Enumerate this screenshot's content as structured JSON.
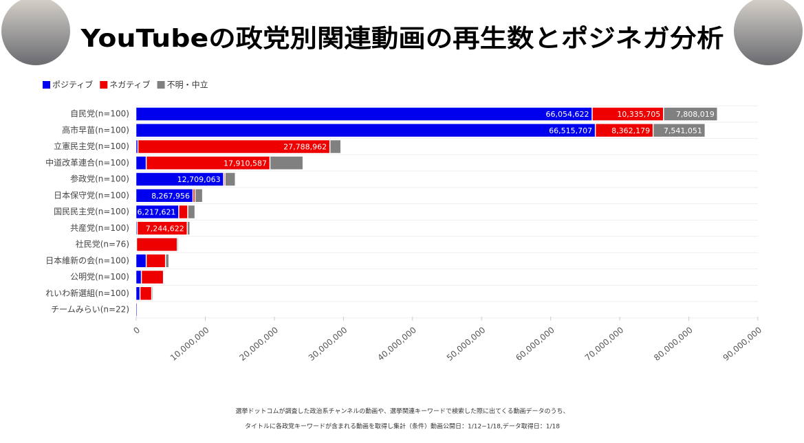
{
  "chart_data": {
    "type": "stacked-bar-horizontal",
    "title": "YouTubeの政党別関連動画の再生数とポジネガ分析",
    "categories": [
      "自民党(n=100)",
      "高市早苗(n=100)",
      "立憲民主党(n=100)",
      "中道改革連合(n=100)",
      "参政党(n=100)",
      "日本保守党(n=100)",
      "国民民主党(n=100)",
      "共産党(n=100)",
      "社民党(n=76)",
      "日本維新の会(n=100)",
      "公明党(n=100)",
      "れいわ新選組(n=100)",
      "チームみらい(n=22)"
    ],
    "series": [
      {
        "name": "ポジティブ",
        "color": "#0000ee",
        "values": [
          66054622,
          66515707,
          300000,
          1500000,
          12709063,
          8267956,
          6217621,
          200000,
          100000,
          1500000,
          800000,
          600000,
          200000
        ],
        "value_labels": [
          "66,054,622",
          "66,515,707",
          null,
          null,
          "12,709,063",
          "8,267,956",
          "6,217,621",
          null,
          null,
          null,
          null,
          null,
          null
        ]
      },
      {
        "name": "ネガティブ",
        "color": "#ee0000",
        "values": [
          10335705,
          8362179,
          27788962,
          17910587,
          200000,
          300000,
          1300000,
          7244622,
          5900000,
          2800000,
          3200000,
          1700000,
          50000
        ],
        "value_labels": [
          "10,335,705",
          "8,362,179",
          "27,788,962",
          "17,910,587",
          null,
          null,
          null,
          "7,244,622",
          null,
          null,
          null,
          null,
          null
        ]
      },
      {
        "name": "不明・中立",
        "color": "#808080",
        "values": [
          7808019,
          7541051,
          1600000,
          4800000,
          1500000,
          1100000,
          1050000,
          400000,
          200000,
          500000,
          100000,
          200000,
          100000
        ],
        "value_labels": [
          "7,808,019",
          "7,541,051",
          null,
          null,
          null,
          null,
          null,
          null,
          null,
          null,
          null,
          null,
          null
        ]
      }
    ],
    "xlim": [
      0,
      90000000
    ],
    "xticks": [
      0,
      {
        "value": 10000000,
        "label": "10,000,000"
      },
      {
        "value": 20000000,
        "label": "20,000,000"
      },
      {
        "value": 30000000,
        "label": "30,000,000"
      },
      {
        "value": 40000000,
        "label": "40,000,000"
      },
      {
        "value": 50000000,
        "label": "50,000,000"
      },
      {
        "value": 60000000,
        "label": "60,000,000"
      },
      {
        "value": 70000000,
        "label": "70,000,000"
      },
      {
        "value": 80000000,
        "label": "80,000,000"
      },
      {
        "value": 90000000,
        "label": "90,000,000"
      }
    ],
    "legend": "top-left",
    "footnote": [
      "選挙ドットコムが調査した政治系チャンネルの動画や、選挙関連キーワードで検索した際に出てくる動画データのうち、",
      "タイトルに各政党キーワードが含まれる動画を取得し集計（条件）動画公開日：1/12~1/18,データ取得日：1/18"
    ]
  }
}
